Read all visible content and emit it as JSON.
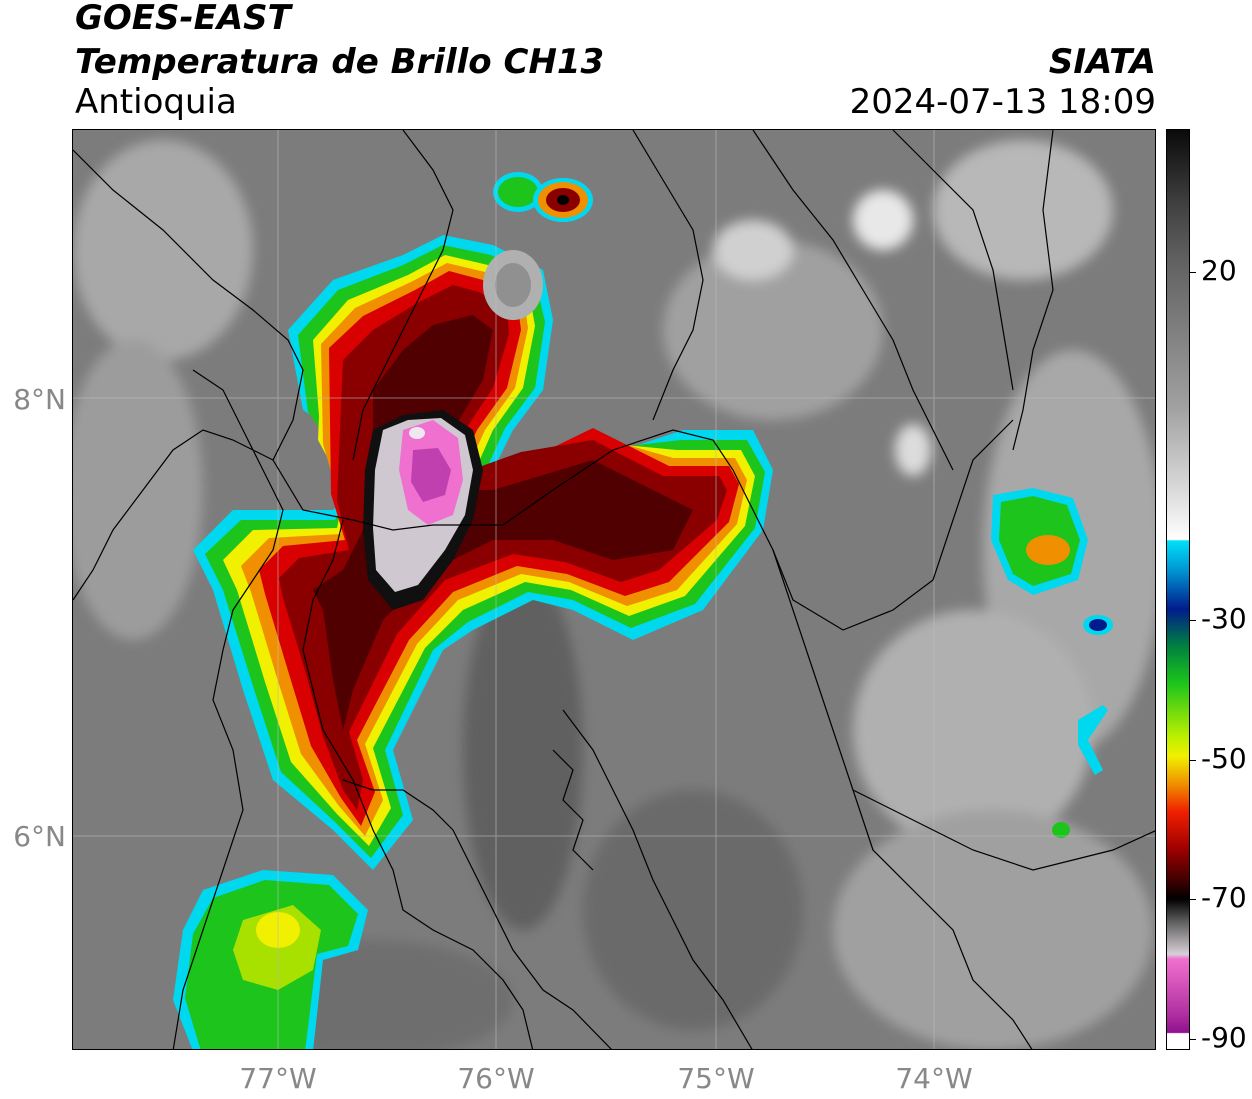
{
  "header": {
    "satellite": "GOES-EAST",
    "product": "Temperatura de Brillo CH13",
    "region": "Antioquia",
    "organization": "SIATA",
    "timestamp": "2024-07-13 18:09"
  },
  "axes": {
    "lat_labels": [
      "8°N",
      "6°N"
    ],
    "lon_labels": [
      "77°W",
      "76°W",
      "75°W",
      "74°W"
    ]
  },
  "colorbar": {
    "tick_labels": [
      "20",
      "-30",
      "-50",
      "-70",
      "-90"
    ],
    "palette": {
      "gray_dark": "#303030",
      "gray_light": "#e0e0e0",
      "cyan": "#00d8f0",
      "blue": "#001c8c",
      "green": "#1cc41c",
      "yellow": "#f0f000",
      "orange": "#f09000",
      "red": "#d80000",
      "dark_red": "#500000",
      "black": "#000000",
      "pink": "#f070d0",
      "purple": "#901090"
    }
  }
}
